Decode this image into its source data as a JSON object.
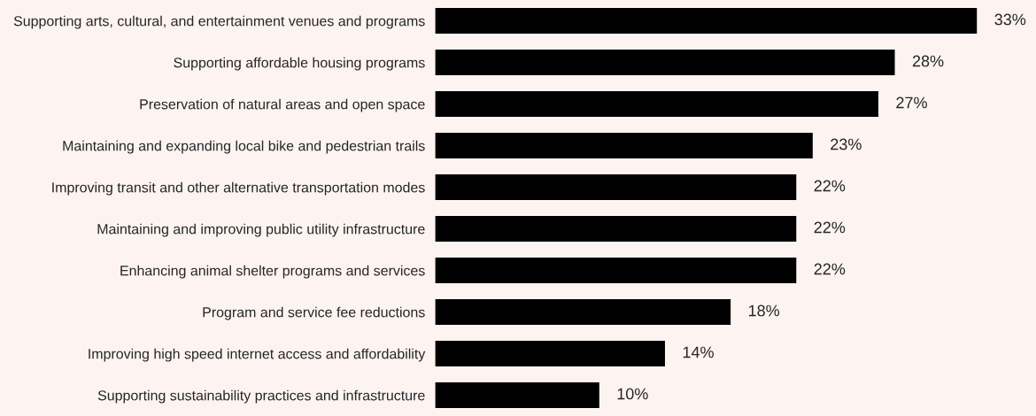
{
  "chart_data": {
    "type": "bar",
    "orientation": "horizontal",
    "categories": [
      "Supporting arts, cultural, and entertainment venues and programs",
      "Supporting affordable housing programs",
      "Preservation of natural areas and open space",
      "Maintaining and expanding local bike and pedestrian trails",
      "Improving transit and other alternative transportation modes",
      "Maintaining and improving public utility infrastructure",
      "Enhancing animal shelter programs and services",
      "Program and service fee reductions",
      "Improving high speed internet access and affordability",
      "Supporting sustainability practices and infrastructure"
    ],
    "values": [
      33,
      28,
      27,
      23,
      22,
      22,
      22,
      18,
      14,
      10
    ],
    "value_labels": [
      "33%",
      "28%",
      "27%",
      "23%",
      "22%",
      "22%",
      "22%",
      "18%",
      "14%",
      "10%"
    ],
    "color": "#000000",
    "tick_labels": "y",
    "grid": false,
    "legend": false
  }
}
